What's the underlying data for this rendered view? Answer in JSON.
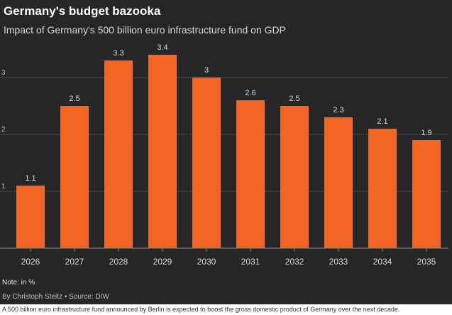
{
  "chart_data": {
    "type": "bar",
    "title": "Germany's budget bazooka",
    "subtitle": "Impact of Germany's 500 billion euro infrastructure fund on GDP",
    "categories": [
      "2026",
      "2027",
      "2028",
      "2029",
      "2030",
      "2031",
      "2032",
      "2033",
      "2034",
      "2035"
    ],
    "values": [
      1.1,
      2.5,
      3.3,
      3.4,
      3,
      2.6,
      2.5,
      2.3,
      2.1,
      1.9
    ],
    "value_labels": [
      "1.1",
      "2.5",
      "3.3",
      "3.4",
      "3",
      "2.6",
      "2.5",
      "2.3",
      "2.1",
      "1.9"
    ],
    "y_ticks": [
      1,
      2,
      3
    ],
    "ylim": [
      0,
      3.6
    ],
    "grid": true,
    "bar_color": "#f26522",
    "background_color": "#262626",
    "note": "Note: in %",
    "credit": "By Christoph Steitz • Source: DIW"
  },
  "caption": "A 500 billion euro infrastructure fund announced by Berlin is expected to boost the gross domestic product of Germany over the next decade."
}
